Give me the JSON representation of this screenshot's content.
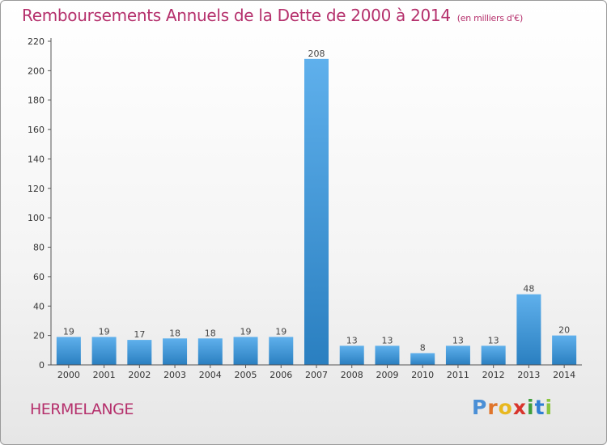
{
  "title": "Remboursements Annuels de la Dette de 2000 à 2014",
  "unit": "(en milliers d'€)",
  "place": "HERMELANGE",
  "logo": {
    "text": "Proxiti",
    "letter_colors": [
      "#4a8fd6",
      "#e0752b",
      "#e8b820",
      "#d8342c",
      "#3f9e3c",
      "#2f7fd4",
      "#8cc63f"
    ]
  },
  "colors": {
    "title": "#b5306c",
    "bar_light": "#5fb0ec",
    "bar_dark": "#2a7fc0"
  },
  "chart_data": {
    "type": "bar",
    "categories": [
      "2000",
      "2001",
      "2002",
      "2003",
      "2004",
      "2005",
      "2006",
      "2007",
      "2008",
      "2009",
      "2010",
      "2011",
      "2012",
      "2013",
      "2014"
    ],
    "values": [
      19,
      19,
      17,
      18,
      18,
      19,
      19,
      208,
      13,
      13,
      8,
      13,
      13,
      48,
      20
    ],
    "ylim": [
      0,
      220
    ],
    "yticks": [
      0,
      20,
      40,
      60,
      80,
      100,
      120,
      140,
      160,
      180,
      200,
      220
    ],
    "grid": false,
    "xlabel": "",
    "ylabel": ""
  }
}
